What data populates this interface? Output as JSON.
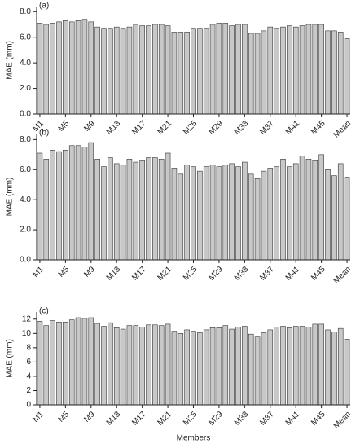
{
  "chart_data": [
    {
      "type": "bar",
      "title": "(a)",
      "ylabel": "MAE (mm)",
      "color": "#c8c8c8",
      "categories": [
        "M1",
        null,
        null,
        null,
        "M5",
        null,
        null,
        null,
        "M9",
        null,
        null,
        null,
        "M13",
        null,
        null,
        null,
        "M17",
        null,
        null,
        null,
        "M21",
        null,
        null,
        null,
        "M25",
        null,
        null,
        null,
        "M29",
        null,
        null,
        null,
        "M33",
        null,
        null,
        null,
        "M37",
        null,
        null,
        null,
        "M41",
        null,
        null,
        null,
        "M45",
        null,
        null,
        null,
        "Mean"
      ],
      "values": [
        7.1,
        7.0,
        7.1,
        7.2,
        7.3,
        7.2,
        7.3,
        7.4,
        7.2,
        6.8,
        6.7,
        6.7,
        6.8,
        6.7,
        6.8,
        7.0,
        6.9,
        6.9,
        7.0,
        7.0,
        6.9,
        6.4,
        6.4,
        6.4,
        6.7,
        6.7,
        6.7,
        7.0,
        7.1,
        7.1,
        6.9,
        7.0,
        7.0,
        6.3,
        6.3,
        6.5,
        6.8,
        6.7,
        6.8,
        6.9,
        6.8,
        6.9,
        7.0,
        7.0,
        7.0,
        6.5,
        6.5,
        6.4,
        5.9
      ],
      "ylim": [
        0,
        8.4
      ],
      "yticks": [
        {
          "value": 0,
          "label": "0.0"
        },
        {
          "value": 2,
          "label": "2.0"
        },
        {
          "value": 4,
          "label": "4.0"
        },
        {
          "value": 6,
          "label": "6.0"
        },
        {
          "value": 8,
          "label": "8.0"
        }
      ]
    },
    {
      "type": "bar",
      "title": "(b)",
      "ylabel": "MAE (mm)",
      "color": "#c8c8c8",
      "categories": [
        "M1",
        null,
        null,
        null,
        "M5",
        null,
        null,
        null,
        "M9",
        null,
        null,
        null,
        "M13",
        null,
        null,
        null,
        "M17",
        null,
        null,
        null,
        "M21",
        null,
        null,
        null,
        "M25",
        null,
        null,
        null,
        "M29",
        null,
        null,
        null,
        "M33",
        null,
        null,
        null,
        "M37",
        null,
        null,
        null,
        "M41",
        null,
        null,
        null,
        "M45",
        null,
        null,
        null,
        "Mean"
      ],
      "values": [
        7.1,
        6.7,
        7.3,
        7.2,
        7.3,
        7.6,
        7.6,
        7.5,
        7.8,
        6.7,
        6.2,
        6.8,
        6.4,
        6.3,
        6.7,
        6.5,
        6.6,
        6.8,
        6.8,
        6.7,
        7.1,
        6.1,
        5.7,
        6.3,
        6.2,
        5.9,
        6.2,
        6.3,
        6.2,
        6.3,
        6.4,
        6.2,
        6.5,
        5.7,
        5.4,
        5.9,
        6.1,
        6.2,
        6.7,
        6.2,
        6.4,
        6.9,
        6.7,
        6.6,
        7.0,
        6.0,
        5.6,
        6.4,
        5.5
      ],
      "ylim": [
        0,
        8.4
      ],
      "yticks": [
        {
          "value": 0,
          "label": "0.0"
        },
        {
          "value": 2,
          "label": "2.0"
        },
        {
          "value": 4,
          "label": "4.0"
        },
        {
          "value": 6,
          "label": "6.0"
        },
        {
          "value": 8,
          "label": "8.0"
        }
      ]
    },
    {
      "type": "bar",
      "title": "(c)",
      "ylabel": "MAE (mm)",
      "xlabel": "Members",
      "color": "#c8c8c8",
      "categories": [
        "M1",
        null,
        null,
        null,
        "M5",
        null,
        null,
        null,
        "M9",
        null,
        null,
        null,
        "M13",
        null,
        null,
        null,
        "M17",
        null,
        null,
        null,
        "M21",
        null,
        null,
        null,
        "M25",
        null,
        null,
        null,
        "M29",
        null,
        null,
        null,
        "M33",
        null,
        null,
        null,
        "M37",
        null,
        null,
        null,
        "M41",
        null,
        null,
        null,
        "M45",
        null,
        null,
        null,
        "Mean"
      ],
      "values": [
        11.7,
        11.1,
        11.8,
        11.6,
        11.6,
        11.9,
        12.2,
        12.1,
        12.2,
        11.4,
        11.0,
        11.5,
        10.8,
        10.6,
        11.1,
        11.1,
        10.9,
        11.2,
        11.2,
        11.1,
        11.3,
        10.3,
        10.0,
        10.5,
        10.3,
        10.1,
        10.5,
        10.8,
        10.8,
        11.1,
        10.6,
        10.9,
        11.0,
        9.9,
        9.5,
        10.1,
        10.5,
        10.9,
        11.0,
        10.8,
        11.0,
        11.0,
        10.9,
        11.3,
        11.3,
        10.5,
        10.2,
        10.7,
        9.2
      ],
      "ylim": [
        0,
        13
      ],
      "yticks": [
        0,
        2,
        4,
        6,
        8,
        10,
        12
      ]
    }
  ]
}
